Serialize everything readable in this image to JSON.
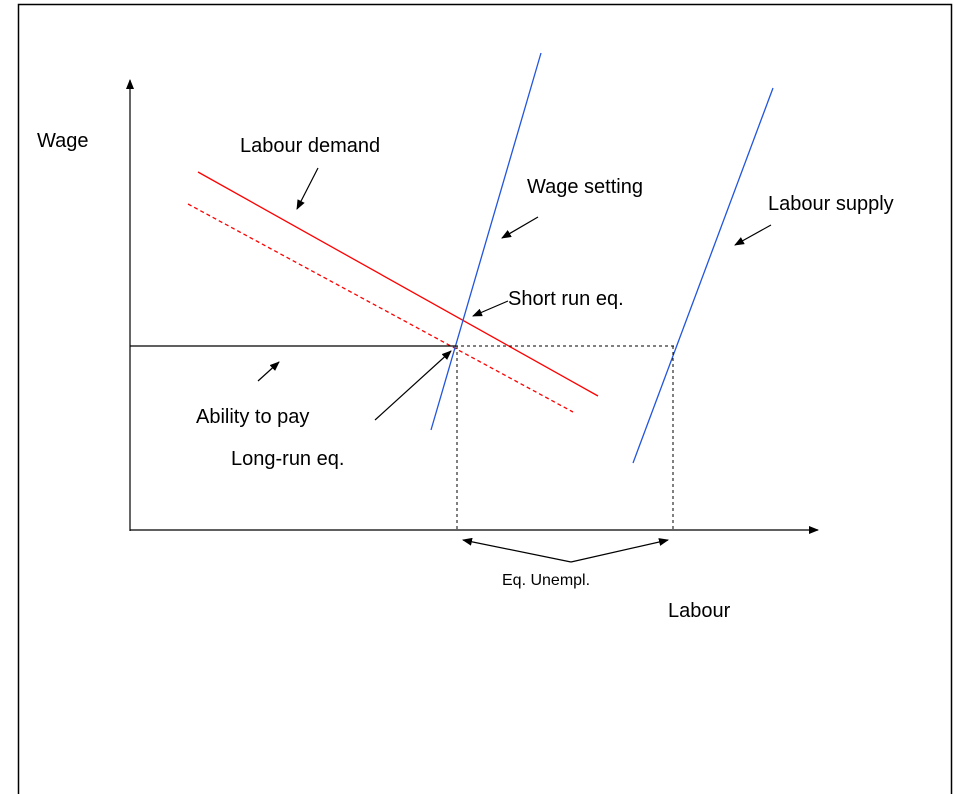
{
  "labels": {
    "y_axis": "Wage",
    "x_axis": "Labour",
    "labour_demand": "Labour demand",
    "wage_setting": "Wage setting",
    "labour_supply": "Labour supply",
    "short_run": "Short run eq.",
    "ability": "Ability to pay",
    "long_run": "Long-run eq.",
    "unemployment": "Eq. Unempl."
  }
}
